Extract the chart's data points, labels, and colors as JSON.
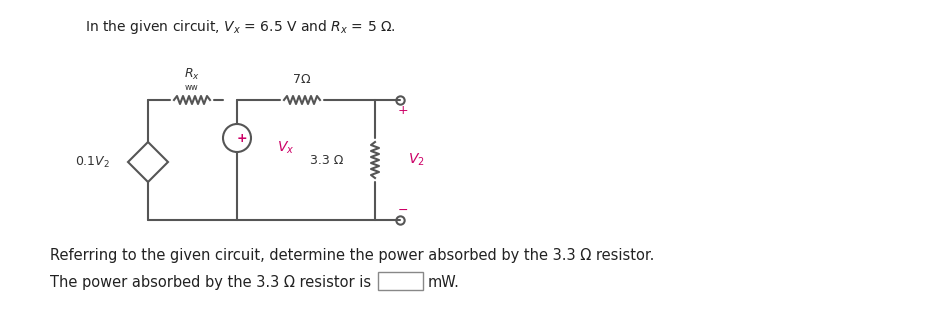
{
  "title_text": "In the given circuit, $V_x$ = 6.5 V and $R_x$ = 5 Ω.",
  "question_text": "Referring to the given circuit, determine the power absorbed by the 3.3 Ω resistor.",
  "answer_text": "The power absorbed by the 3.3 Ω resistor is",
  "unit_text": "mW.",
  "bg_color": "#ffffff",
  "circuit_color": "#555555",
  "label_color_pink": "#cc0066",
  "label_color_dark": "#333333",
  "title_fontsize": 10,
  "body_fontsize": 10.5
}
